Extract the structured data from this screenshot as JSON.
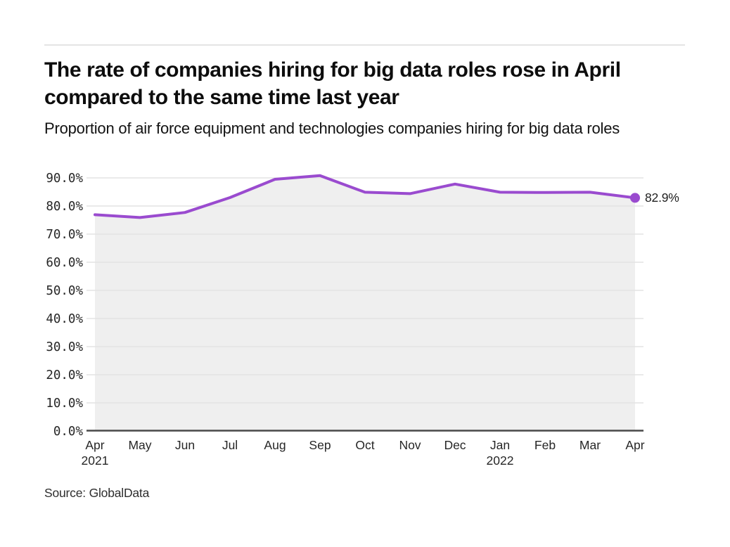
{
  "header": {
    "title": "The rate of companies hiring for big data roles rose in April compared to the same time last year",
    "subtitle": "Proportion of air force equipment and technologies companies hiring for big data roles"
  },
  "chart_data": {
    "type": "area",
    "x_labels": [
      {
        "month": "Apr",
        "year": "2021"
      },
      {
        "month": "May"
      },
      {
        "month": "Jun"
      },
      {
        "month": "Jul"
      },
      {
        "month": "Aug"
      },
      {
        "month": "Sep"
      },
      {
        "month": "Oct"
      },
      {
        "month": "Nov"
      },
      {
        "month": "Dec"
      },
      {
        "month": "Jan",
        "year": "2022"
      },
      {
        "month": "Feb"
      },
      {
        "month": "Mar"
      },
      {
        "month": "Apr"
      }
    ],
    "values": [
      76.9,
      75.9,
      77.7,
      83.0,
      89.5,
      90.8,
      84.9,
      84.4,
      87.8,
      84.9,
      84.8,
      84.9,
      82.9
    ],
    "unit": "%",
    "y_tick_labels": [
      "0.0%",
      "10.0%",
      "20.0%",
      "30.0%",
      "40.0%",
      "50.0%",
      "60.0%",
      "70.0%",
      "80.0%",
      "90.0%"
    ],
    "ylim": [
      0,
      90
    ],
    "grid": true,
    "legend": false,
    "end_label": "82.9%",
    "colors": {
      "line": "#9A4BCF",
      "fill": "#EFEFEF",
      "grid": "#E3E3E3",
      "axis": "#4A4A4A",
      "tick_text": "#262626"
    }
  },
  "footer": {
    "source": "Source: GlobalData"
  }
}
